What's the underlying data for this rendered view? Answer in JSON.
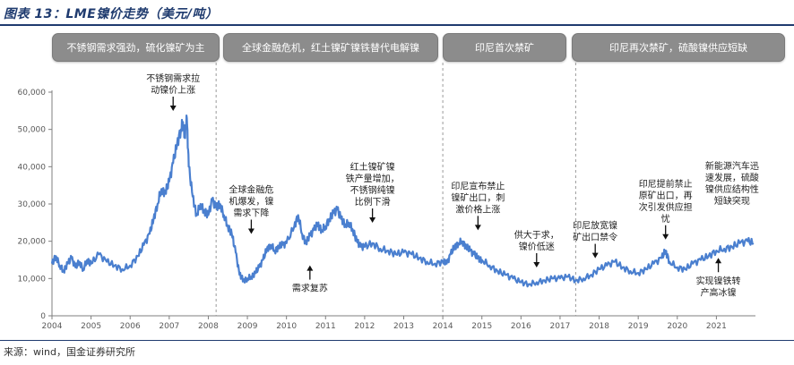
{
  "figure": {
    "title": "图表 13：LME镍价走势（美元/吨）",
    "source": "来源：wind，国金证券研究所"
  },
  "colors": {
    "line": "#4a7fcf",
    "title": "#1f3b6f",
    "phase_box": "#8c8c8c",
    "axis": "#7f7f7f"
  },
  "phases": [
    {
      "label": "不锈钢需求强劲，硫化镍矿为主"
    },
    {
      "label": "全球金融危机，红土镍矿镍铁替代电解镍"
    },
    {
      "label": "印尼首次禁矿"
    },
    {
      "label": "印尼再次禁矿，硫酸镍供应短缺"
    }
  ],
  "chart_data": {
    "type": "line",
    "title": "LME镍价走势（美元/吨）",
    "xlabel": "",
    "ylabel": "美元/吨",
    "xlim": [
      2004,
      2022
    ],
    "ylim": [
      0,
      60000
    ],
    "yticks": [
      "0",
      "10,000",
      "20,000",
      "30,000",
      "40,000",
      "50,000",
      "60,000"
    ],
    "xticks": [
      "2004",
      "2005",
      "2006",
      "2007",
      "2008",
      "2009",
      "2010",
      "2011",
      "2012",
      "2013",
      "2014",
      "2015",
      "2016",
      "2017",
      "2018",
      "2019",
      "2020",
      "2021"
    ],
    "phase_boundaries": [
      2008.2,
      2014.0,
      2017.4
    ],
    "series": [
      {
        "name": "LME镍价",
        "x": [
          2004.0,
          2004.1,
          2004.2,
          2004.3,
          2004.4,
          2004.5,
          2004.6,
          2004.7,
          2004.8,
          2004.9,
          2005.0,
          2005.2,
          2005.4,
          2005.6,
          2005.8,
          2006.0,
          2006.2,
          2006.35,
          2006.5,
          2006.6,
          2006.7,
          2006.8,
          2006.9,
          2007.0,
          2007.1,
          2007.2,
          2007.3,
          2007.35,
          2007.4,
          2007.45,
          2007.5,
          2007.6,
          2007.7,
          2007.8,
          2007.9,
          2008.0,
          2008.1,
          2008.2,
          2008.3,
          2008.4,
          2008.5,
          2008.6,
          2008.7,
          2008.8,
          2008.9,
          2009.0,
          2009.1,
          2009.2,
          2009.3,
          2009.4,
          2009.5,
          2009.6,
          2009.7,
          2009.8,
          2009.9,
          2010.0,
          2010.2,
          2010.3,
          2010.4,
          2010.5,
          2010.6,
          2010.7,
          2010.8,
          2010.9,
          2011.0,
          2011.1,
          2011.2,
          2011.3,
          2011.4,
          2011.5,
          2011.6,
          2011.7,
          2011.8,
          2011.9,
          2012.0,
          2012.2,
          2012.4,
          2012.6,
          2012.8,
          2013.0,
          2013.2,
          2013.4,
          2013.6,
          2013.8,
          2014.0,
          2014.1,
          2014.2,
          2014.3,
          2014.4,
          2014.5,
          2014.6,
          2014.7,
          2014.8,
          2014.9,
          2015.0,
          2015.2,
          2015.4,
          2015.6,
          2015.8,
          2016.0,
          2016.2,
          2016.4,
          2016.6,
          2016.8,
          2017.0,
          2017.2,
          2017.4,
          2017.6,
          2017.8,
          2018.0,
          2018.2,
          2018.4,
          2018.6,
          2018.8,
          2019.0,
          2019.2,
          2019.4,
          2019.6,
          2019.7,
          2019.8,
          2020.0,
          2020.2,
          2020.4,
          2020.6,
          2020.8,
          2021.0,
          2021.2,
          2021.4,
          2021.6,
          2021.8,
          2021.95
        ],
        "values": [
          14000,
          16000,
          13500,
          12000,
          14000,
          15500,
          13000,
          14500,
          12500,
          15000,
          14000,
          16500,
          14500,
          13500,
          12500,
          13500,
          16000,
          19000,
          22000,
          26000,
          30000,
          34000,
          33000,
          36000,
          41000,
          46000,
          50000,
          52000,
          48000,
          53000,
          40000,
          32000,
          27000,
          30000,
          28000,
          27000,
          31000,
          29000,
          30000,
          27000,
          24000,
          22000,
          17000,
          11000,
          9500,
          10000,
          10500,
          11500,
          13000,
          15000,
          18000,
          19000,
          17500,
          18500,
          19000,
          19500,
          24000,
          27000,
          22000,
          19500,
          21500,
          23000,
          24500,
          23000,
          24000,
          26000,
          27500,
          28500,
          26000,
          24500,
          25000,
          23000,
          20000,
          18500,
          18500,
          19500,
          18000,
          17500,
          16500,
          17000,
          16500,
          15500,
          14500,
          14000,
          14500,
          14000,
          16500,
          18500,
          19500,
          20000,
          18500,
          17500,
          16500,
          15500,
          15000,
          13500,
          12000,
          11000,
          10000,
          9000,
          8500,
          9000,
          9500,
          10000,
          10000,
          10500,
          9500,
          10000,
          11000,
          12500,
          13500,
          14500,
          13000,
          12000,
          11500,
          12500,
          14000,
          15500,
          17500,
          14500,
          13000,
          12500,
          14000,
          15000,
          16000,
          17500,
          18000,
          18500,
          19500,
          20000,
          19500
        ]
      }
    ],
    "annotations": [
      {
        "lines": [
          "不锈钢需求拉",
          "动镍价上涨"
        ],
        "x": 2007.1,
        "y": 54000,
        "arrow": "down"
      },
      {
        "lines": [
          "全球金融危",
          "机爆发，镍",
          "需求下降"
        ],
        "x": 2009.1,
        "y": 21000,
        "arrow": "down"
      },
      {
        "lines": [
          "需求复苏"
        ],
        "x": 2010.6,
        "y": 14500,
        "arrow": "up"
      },
      {
        "lines": [
          "红土镍矿镍",
          "铁产量增加，",
          "不锈钢纯镍",
          "比例下滑"
        ],
        "x": 2012.2,
        "y": 24000,
        "arrow": "down"
      },
      {
        "lines": [
          "印尼宣布禁止",
          "镍矿出口，刺",
          "激价格上涨"
        ],
        "x": 2014.9,
        "y": 22000,
        "arrow": "down"
      },
      {
        "lines": [
          "供大于求，",
          "镍价低迷"
        ],
        "x": 2016.4,
        "y": 12000,
        "arrow": "down"
      },
      {
        "lines": [
          "印尼放宽镍",
          "矿出口禁令"
        ],
        "x": 2017.9,
        "y": 14500,
        "arrow": "down"
      },
      {
        "lines": [
          "印尼提前禁止",
          "原矿出口，再",
          "次引发供应担",
          "忧"
        ],
        "x": 2019.7,
        "y": 19500,
        "arrow": "down"
      },
      {
        "lines": [
          "实现镍铁转",
          "产高冰镍"
        ],
        "x": 2021.05,
        "y": 16500,
        "arrow": "up"
      },
      {
        "lines": [
          "新能源汽车迅",
          "速发展，硫酸",
          "镍供应结构性",
          "短缺突现"
        ],
        "x": 2021.4,
        "y": 999
      }
    ]
  }
}
